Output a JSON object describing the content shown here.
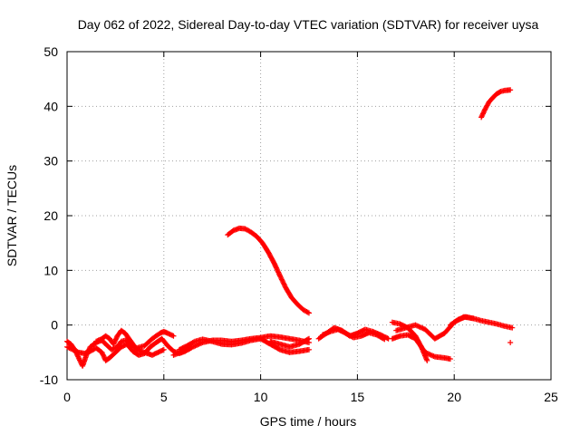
{
  "chart_data": {
    "type": "scatter",
    "title": "Day 062 of 2022, Sidereal Day-to-day VTEC variation (SDTVAR) for receiver uysa",
    "xlabel": "GPS time / hours",
    "ylabel": "SDTVAR / TECUs",
    "xlim": [
      0,
      25
    ],
    "ylim": [
      -10,
      50
    ],
    "xticks": [
      0,
      5,
      10,
      15,
      20,
      25
    ],
    "yticks": [
      -10,
      0,
      10,
      20,
      30,
      40,
      50
    ],
    "xtick_labels": [
      "0",
      "5",
      "10",
      "15",
      "20",
      "25"
    ],
    "ytick_labels": [
      "-10",
      "0",
      "10",
      "20",
      "30",
      "40",
      "50"
    ],
    "grid": true,
    "marker": "+",
    "color": "#ff0000",
    "series": [
      {
        "name": "arc1",
        "x": [
          0.0,
          0.2,
          0.4,
          0.6,
          0.8,
          1.0,
          1.2,
          1.5,
          1.8,
          2.0,
          2.3,
          2.6,
          2.8,
          3.0,
          3.3,
          3.6,
          4.0,
          4.4,
          4.8,
          5.0,
          5.2,
          5.5
        ],
        "y": [
          -3.0,
          -3.5,
          -4.5,
          -6.0,
          -7.5,
          -5.5,
          -4.0,
          -3.2,
          -2.8,
          -3.5,
          -4.5,
          -4.0,
          -3.0,
          -2.8,
          -3.5,
          -4.2,
          -3.8,
          -2.5,
          -1.5,
          -1.2,
          -1.5,
          -2.0
        ]
      },
      {
        "name": "arc2",
        "x": [
          0.0,
          0.3,
          0.6,
          0.9,
          1.2,
          1.5,
          1.8,
          2.0,
          2.2,
          2.5,
          2.8,
          3.1,
          3.4,
          3.7,
          4.0,
          4.3,
          4.6,
          4.9,
          5.2,
          5.5,
          5.8,
          6.1,
          6.4
        ],
        "y": [
          -4.0,
          -4.5,
          -5.0,
          -5.2,
          -4.8,
          -4.2,
          -5.0,
          -6.5,
          -6.0,
          -5.0,
          -4.0,
          -3.5,
          -4.8,
          -5.5,
          -5.2,
          -4.0,
          -3.2,
          -2.5,
          -3.8,
          -4.8,
          -5.2,
          -4.8,
          -4.2
        ]
      },
      {
        "name": "arc3",
        "x": [
          1.5,
          1.8,
          2.0,
          2.2,
          2.4,
          2.6,
          2.8,
          3.0,
          3.3,
          3.6,
          4.0,
          4.4,
          4.7,
          5.0
        ],
        "y": [
          -3.0,
          -2.5,
          -2.0,
          -2.5,
          -3.5,
          -2.0,
          -1.0,
          -1.5,
          -3.0,
          -4.5,
          -5.0,
          -5.5,
          -5.0,
          -4.5
        ]
      },
      {
        "name": "arc4",
        "x": [
          5.5,
          6.0,
          6.5,
          7.0,
          7.5,
          8.0,
          8.5,
          9.0,
          9.5,
          10.0,
          10.5,
          11.0,
          11.5,
          12.0,
          12.5
        ],
        "y": [
          -5.5,
          -4.8,
          -4.0,
          -3.2,
          -2.8,
          -2.8,
          -3.0,
          -2.8,
          -2.5,
          -2.3,
          -2.0,
          -2.2,
          -2.5,
          -2.8,
          -3.2
        ]
      },
      {
        "name": "arc5",
        "x": [
          5.8,
          6.2,
          6.6,
          7.0,
          7.5,
          8.0,
          8.5,
          9.0,
          9.5,
          10.0,
          10.5,
          11.0,
          11.5,
          12.0,
          12.5
        ],
        "y": [
          -4.5,
          -3.8,
          -3.0,
          -2.6,
          -3.0,
          -3.5,
          -3.6,
          -3.3,
          -2.8,
          -2.5,
          -3.5,
          -4.5,
          -5.0,
          -4.8,
          -4.5
        ]
      },
      {
        "name": "arc6",
        "x": [
          10.5,
          11.0,
          11.5,
          12.0,
          12.5
        ],
        "y": [
          -3.0,
          -3.5,
          -4.0,
          -3.5,
          -2.5
        ]
      },
      {
        "name": "arc7",
        "x": [
          8.3,
          8.6,
          8.9,
          9.2,
          9.5,
          9.8,
          10.1,
          10.4,
          10.7,
          11.0,
          11.3,
          11.6,
          11.9,
          12.2,
          12.5
        ],
        "y": [
          16.5,
          17.3,
          17.7,
          17.6,
          17.0,
          16.2,
          15.0,
          13.3,
          11.3,
          9.0,
          6.8,
          5.0,
          3.8,
          2.8,
          2.2
        ]
      },
      {
        "name": "arc8",
        "x": [
          13.0,
          13.4,
          13.8,
          14.2,
          14.6,
          15.0,
          15.4,
          15.8,
          16.2,
          16.6
        ],
        "y": [
          -2.5,
          -1.5,
          -0.5,
          -1.0,
          -2.0,
          -1.5,
          -0.8,
          -1.2,
          -1.8,
          -2.5
        ]
      },
      {
        "name": "arc9",
        "x": [
          13.2,
          13.6,
          14.0,
          14.4,
          14.8,
          15.2,
          15.6,
          16.0,
          16.4
        ],
        "y": [
          -1.8,
          -1.2,
          -0.8,
          -1.5,
          -2.3,
          -2.0,
          -1.4,
          -1.8,
          -2.6
        ]
      },
      {
        "name": "arc10",
        "x": [
          16.8,
          17.2,
          17.6,
          18.0,
          18.3,
          18.6
        ],
        "y": [
          0.5,
          0.2,
          -0.5,
          -2.0,
          -4.0,
          -6.5
        ]
      },
      {
        "name": "arc11",
        "x": [
          16.8,
          17.2,
          17.6,
          18.0,
          18.5,
          19.0,
          19.5,
          19.8
        ],
        "y": [
          -2.5,
          -2.0,
          -1.8,
          -2.5,
          -5.0,
          -5.8,
          -6.0,
          -6.2
        ]
      },
      {
        "name": "arc12",
        "x": [
          17.0,
          17.5,
          18.0,
          18.5,
          19.0,
          19.5,
          20.0,
          20.5,
          21.0
        ],
        "y": [
          -1.0,
          -0.5,
          0.0,
          -0.8,
          -2.5,
          -1.5,
          0.5,
          1.5,
          1.2
        ]
      },
      {
        "name": "arc13",
        "x": [
          19.8,
          20.2,
          20.6,
          21.0,
          21.4,
          21.8,
          22.2,
          22.6,
          23.0
        ],
        "y": [
          0.0,
          1.0,
          1.5,
          1.2,
          0.8,
          0.5,
          0.2,
          -0.2,
          -0.5
        ]
      },
      {
        "name": "arc14",
        "x": [
          21.4,
          21.6,
          21.8,
          22.0,
          22.2,
          22.4,
          22.6,
          22.9
        ],
        "y": [
          38.0,
          39.5,
          40.8,
          41.6,
          42.3,
          42.7,
          42.9,
          43.0
        ]
      },
      {
        "name": "outlier",
        "x": [
          22.9
        ],
        "y": [
          -3.2
        ]
      }
    ]
  }
}
